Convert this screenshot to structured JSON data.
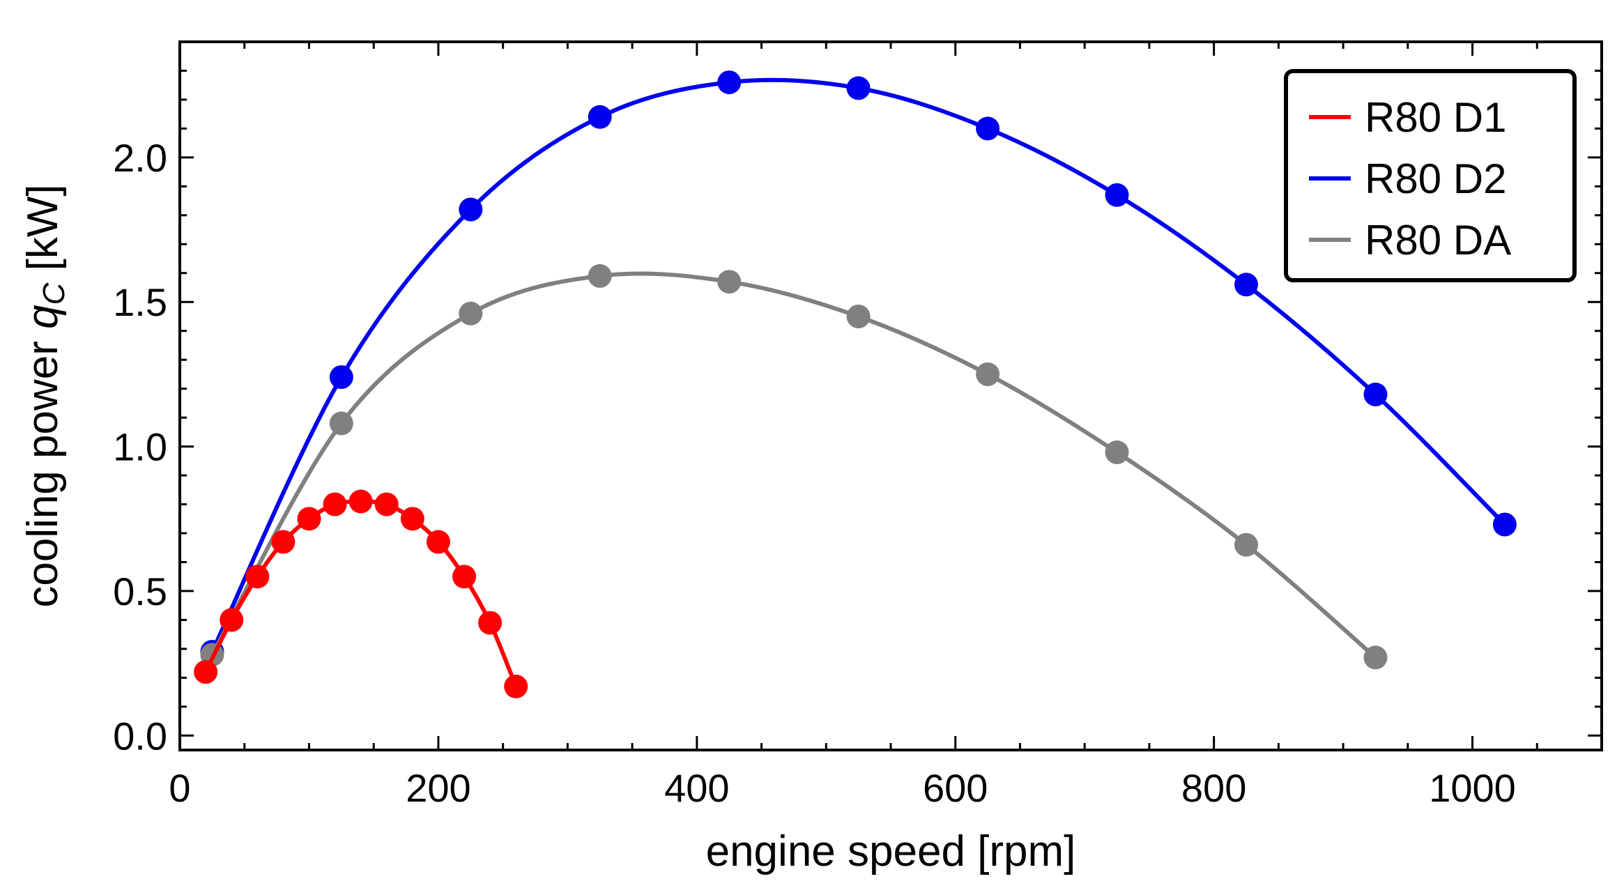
{
  "chart_data": {
    "type": "line",
    "xlabel": "engine speed [rpm]",
    "ylabel_prefix": "cooling power ",
    "ylabel_var": "q",
    "ylabel_sub": "C",
    "ylabel_unit": " [kW]",
    "xlim": [
      0,
      1100
    ],
    "ylim": [
      -0.05,
      2.4
    ],
    "x_ticks": [
      0,
      200,
      400,
      600,
      800,
      1000
    ],
    "x_tick_labels": [
      "0",
      "200",
      "400",
      "600",
      "800",
      "1000"
    ],
    "y_ticks": [
      0.0,
      0.5,
      1.0,
      1.5,
      2.0
    ],
    "y_tick_labels": [
      "0.0",
      "0.5",
      "1.0",
      "1.5",
      "2.0"
    ],
    "x_minor_step": 50,
    "y_minor_step": 0.1,
    "legend_position": "top-right",
    "series": [
      {
        "name": "R80 D1",
        "color": "#ff0000",
        "x": [
          20,
          40,
          60,
          80,
          100,
          120,
          140,
          160,
          180,
          200,
          220,
          240,
          260
        ],
        "y": [
          0.22,
          0.4,
          0.55,
          0.67,
          0.75,
          0.8,
          0.81,
          0.8,
          0.75,
          0.67,
          0.55,
          0.39,
          0.17
        ]
      },
      {
        "name": "R80 D2",
        "color": "#0000ee",
        "x": [
          25,
          125,
          225,
          325,
          425,
          525,
          625,
          725,
          825,
          925,
          1025
        ],
        "y": [
          0.29,
          1.24,
          1.82,
          2.14,
          2.26,
          2.24,
          2.1,
          1.87,
          1.56,
          1.18,
          0.73
        ]
      },
      {
        "name": "R80 DA",
        "color": "#808080",
        "x": [
          25,
          125,
          225,
          325,
          425,
          525,
          625,
          725,
          825,
          925
        ],
        "y": [
          0.28,
          1.08,
          1.46,
          1.59,
          1.57,
          1.45,
          1.25,
          0.98,
          0.66,
          0.27
        ]
      }
    ]
  }
}
